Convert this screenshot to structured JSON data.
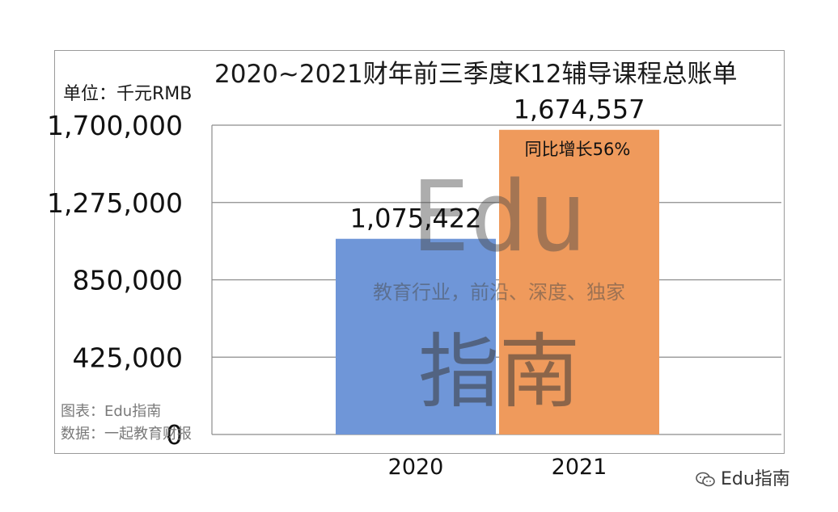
{
  "header": {
    "title": "2020~2021财年前三季度K12辅导课程总账单",
    "unit": "单位：千元RMB"
  },
  "footer": {
    "chart_credit": "图表：Edu指南",
    "data_source": "数据：一起教育财报",
    "watermark_account": "Edu指南"
  },
  "watermark": {
    "big": "Edu",
    "tagline": "教育行业，前沿、深度、独家",
    "bottom": "指南"
  },
  "chart_data": {
    "type": "bar",
    "title": "2020~2021财年前三季度K12辅导课程总账单",
    "ylabel": "单位：千元RMB",
    "categories": [
      "2020",
      "2021"
    ],
    "values": [
      1075422,
      1674557
    ],
    "value_labels": [
      "1,075,422",
      "1,674,557"
    ],
    "annotation": "同比增长56%",
    "y_ticks": [
      0,
      425000,
      850000,
      1275000,
      1700000
    ],
    "y_tick_labels": [
      "0",
      "425,000",
      "850,000",
      "1,275,000",
      "1,700,000"
    ],
    "ylim": [
      0,
      1700000
    ],
    "grid": true,
    "colors": [
      "#6f96d8",
      "#ef9a5c"
    ]
  }
}
